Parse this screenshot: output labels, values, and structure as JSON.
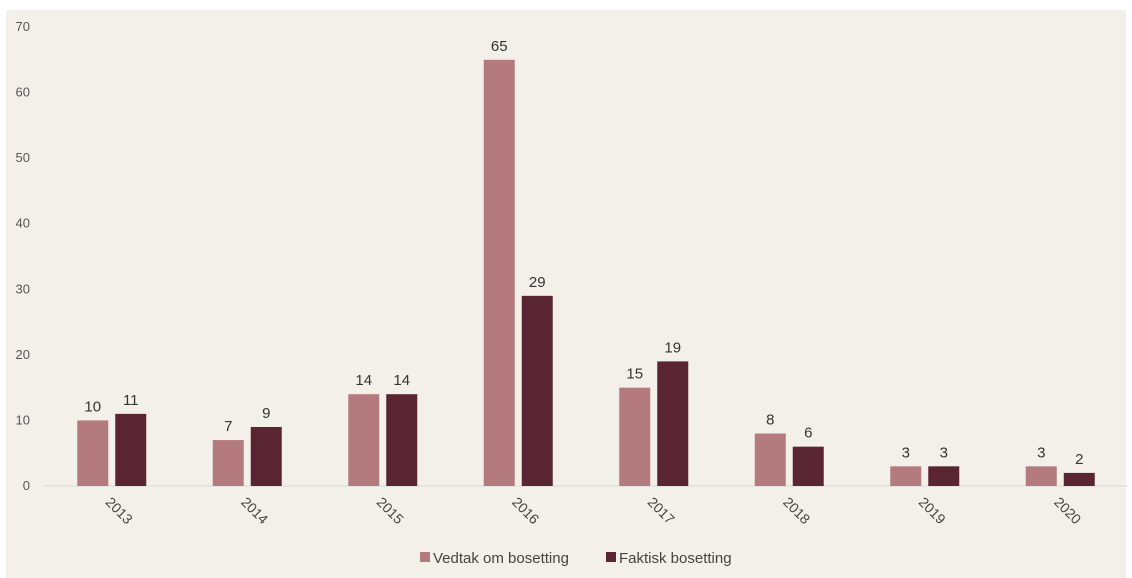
{
  "chart_data": {
    "type": "bar",
    "categories": [
      "2013",
      "2014",
      "2015",
      "2016",
      "2017",
      "2018",
      "2019",
      "2020"
    ],
    "series": [
      {
        "name": "Vedtak om bosetting",
        "values": [
          10,
          7,
          14,
          65,
          15,
          8,
          3,
          3
        ],
        "color": "#b37b7d"
      },
      {
        "name": "Faktisk bosetting",
        "values": [
          11,
          9,
          14,
          29,
          19,
          6,
          3,
          2
        ],
        "color": "#5a2532"
      }
    ],
    "yticks": [
      0,
      10,
      20,
      30,
      40,
      50,
      60,
      70
    ],
    "ylim": [
      0,
      70
    ],
    "grid": false,
    "legend_position": "bottom",
    "background": "#f2f0e9",
    "axis_color": "#d9d9d9"
  }
}
